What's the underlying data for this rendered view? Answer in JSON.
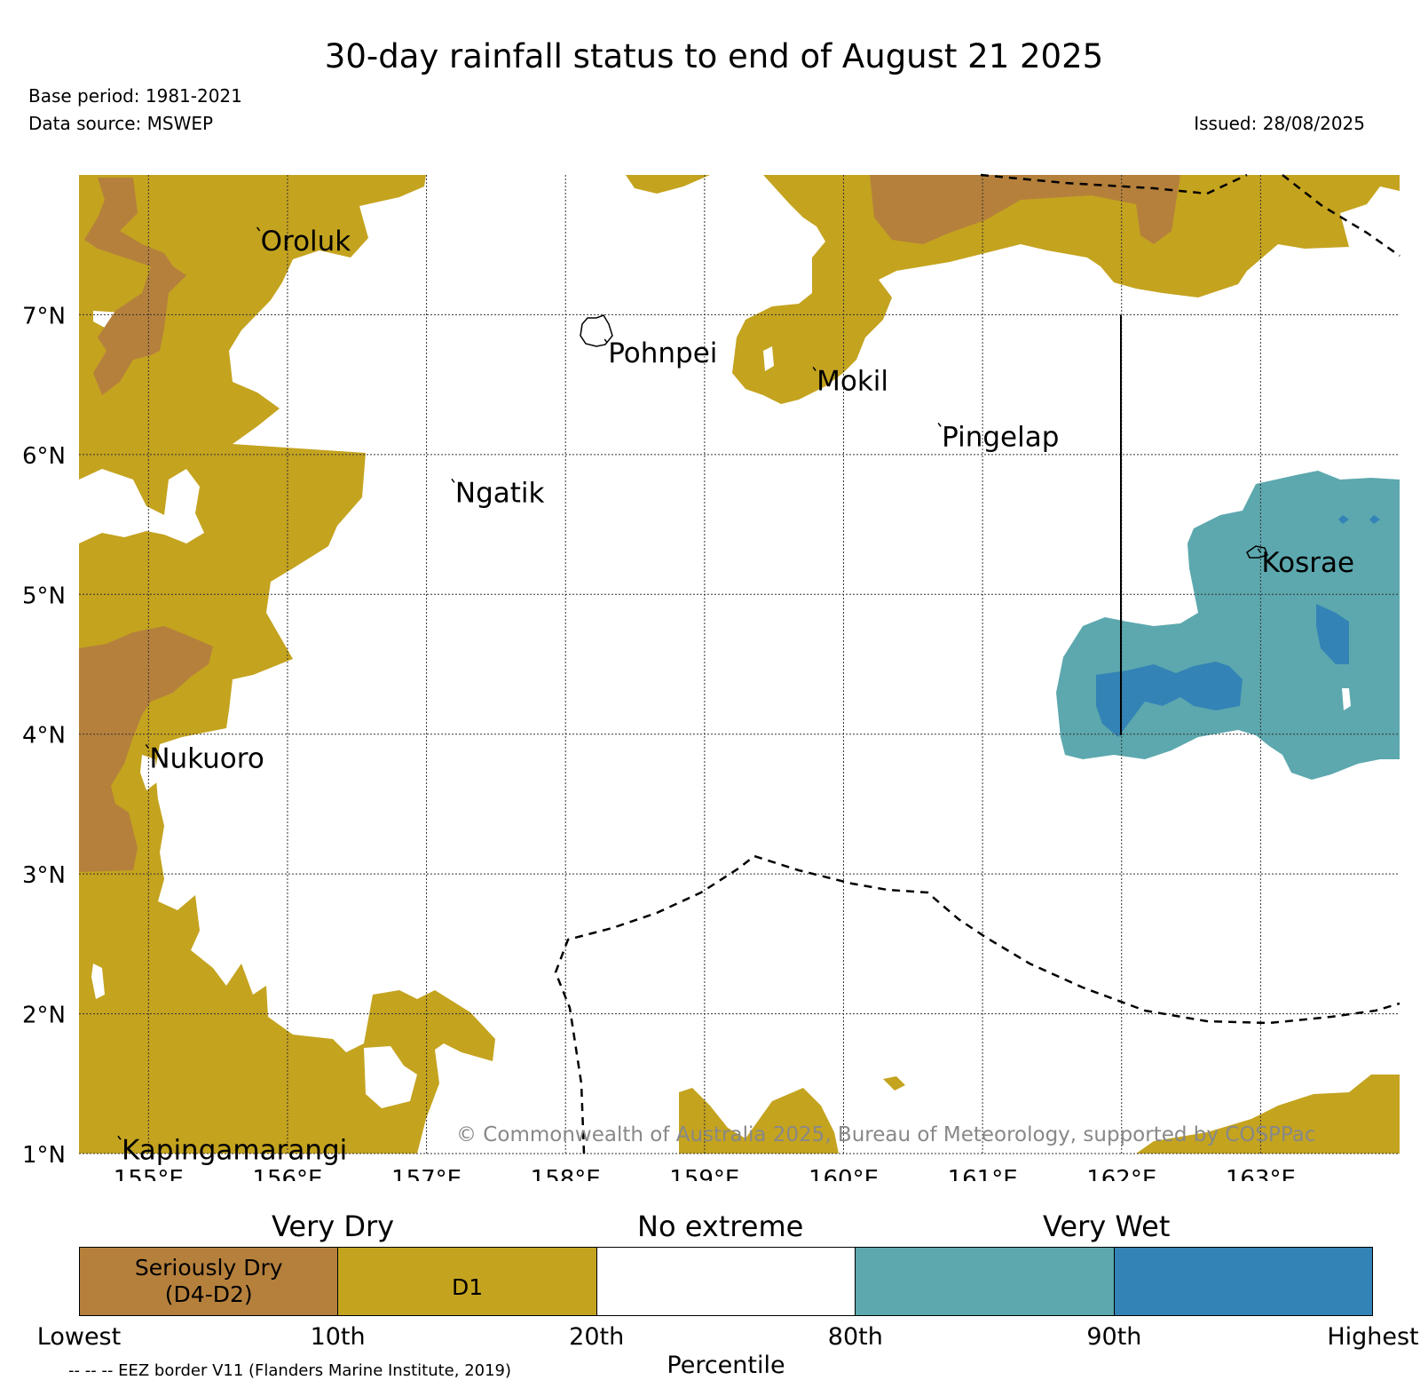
{
  "title": "30-day rainfall status to end of August 21 2025",
  "base_period": "Base period: 1981-2021",
  "data_source": "Data source: MSWEP",
  "issued": "Issued: 28/08/2025",
  "credit": "© Commonwealth of Australia 2025, Bureau of Meteorology, supported by COSPPac",
  "eez_note": "-- -- -- EEZ border V11 (Flanders Marine Institute, 2019)",
  "map": {
    "lon_range": [
      154.5,
      164.0
    ],
    "lat_range": [
      1.0,
      8.0
    ],
    "lon_ticks": [
      "155°E",
      "156°E",
      "157°E",
      "158°E",
      "159°E",
      "160°E",
      "161°E",
      "162°E",
      "163°E"
    ],
    "lat_ticks": [
      "1°N",
      "2°N",
      "3°N",
      "4°N",
      "5°N",
      "6°N",
      "7°N"
    ],
    "places": [
      {
        "name": "Oroluk",
        "lon": 155.8,
        "lat": 7.6
      },
      {
        "name": "Pohnpei",
        "lon": 158.3,
        "lat": 6.8
      },
      {
        "name": "Mokil",
        "lon": 159.8,
        "lat": 6.6
      },
      {
        "name": "Pingelap",
        "lon": 160.7,
        "lat": 6.2
      },
      {
        "name": "Ngatik",
        "lon": 157.2,
        "lat": 5.8
      },
      {
        "name": "Kosrae",
        "lon": 163.0,
        "lat": 5.3
      },
      {
        "name": "Nukuoro",
        "lon": 155.0,
        "lat": 3.9
      },
      {
        "name": "Kapingamarangi",
        "lon": 154.8,
        "lat": 1.1
      }
    ]
  },
  "legend": {
    "heads": {
      "dry": "Very Dry",
      "none": "No extreme",
      "wet": "Very Wet"
    },
    "categories": [
      {
        "label": "Seriously Dry (D4-D2)",
        "line1": "Seriously Dry",
        "line2": "(D4-D2)",
        "color": "#b5803c"
      },
      {
        "label": "D1",
        "line1": "D1",
        "line2": "",
        "color": "#c4a31f"
      },
      {
        "label": "",
        "line1": "",
        "line2": "",
        "color": "#ffffff"
      },
      {
        "label": "",
        "line1": "",
        "line2": "",
        "color": "#5ca8ae"
      },
      {
        "label": "",
        "line1": "",
        "line2": "",
        "color": "#3483b6"
      }
    ],
    "ticks": [
      "Lowest",
      "10th",
      "20th",
      "80th",
      "90th",
      "Highest"
    ],
    "xlabel": "Percentile"
  },
  "colors": {
    "seriously_dry": "#b5803c",
    "d1": "#c4a31f",
    "very_wet": "#5ca8ae",
    "highest_wet": "#3483b6",
    "eez": "#000000",
    "credit": "#888888"
  }
}
